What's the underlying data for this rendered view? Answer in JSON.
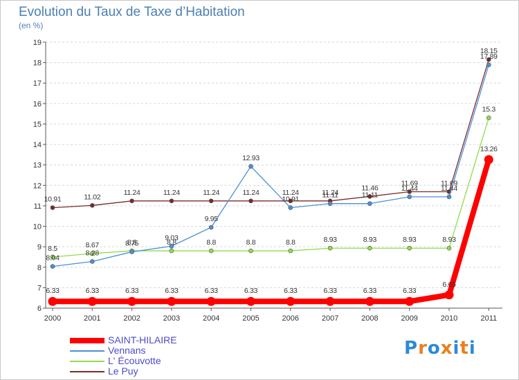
{
  "header": {
    "title": "Evolution du Taux de Taxe d’Habitation",
    "subtitle": "(en %)"
  },
  "logo": {
    "text": "Proxiti",
    "colors": [
      "#2c8ad6",
      "#e8801e",
      "#2c8ad6",
      "#e8801e",
      "#2c8ad6",
      "#e8801e",
      "#2c8ad6"
    ]
  },
  "chart_data": {
    "type": "line",
    "title": "Evolution du Taux de Taxe d’Habitation",
    "subtitle": "(en %)",
    "xlabel": "",
    "ylabel": "",
    "categories": [
      "2000",
      "2001",
      "2002",
      "2003",
      "2004",
      "2005",
      "2006",
      "2007",
      "2008",
      "2009",
      "2010",
      "2011"
    ],
    "ylim": [
      6,
      19
    ],
    "yticks": [
      6,
      7,
      8,
      9,
      10,
      11,
      12,
      13,
      14,
      15,
      16,
      17,
      18,
      19
    ],
    "grid": "horizontal dashed",
    "legend_position": "bottom-left",
    "series": [
      {
        "name": "SAINT-HILAIRE",
        "color": "#ff0000",
        "values": [
          6.33,
          6.33,
          6.33,
          6.33,
          6.33,
          6.33,
          6.33,
          6.33,
          6.33,
          6.33,
          6.65,
          13.26
        ],
        "labels": [
          "6.33",
          "6.33",
          "6.33",
          "6.33",
          "6.33",
          "6.33",
          "6.33",
          "6.33",
          "6.33",
          "6.33",
          "6.65",
          "13.26"
        ]
      },
      {
        "name": "Vennans",
        "color": "#4a90d9",
        "values": [
          8.04,
          8.28,
          8.75,
          9.03,
          9.95,
          12.93,
          10.91,
          11.11,
          11.11,
          11.44,
          11.44,
          17.89
        ],
        "labels": [
          "8.04",
          "8.28",
          "8.75",
          "9.03",
          "9.95",
          "12.93",
          "10.91",
          "11.11",
          "11.11",
          "11.44",
          "11.44",
          "17.89"
        ]
      },
      {
        "name": "L' Écouvotte",
        "color": "#8fdc4a",
        "values": [
          8.5,
          8.67,
          8.8,
          8.8,
          8.8,
          8.8,
          8.8,
          8.93,
          8.93,
          8.93,
          8.93,
          15.3
        ],
        "labels": [
          "8.5",
          "8.67",
          "8.8",
          "8.8",
          "8.8",
          "8.8",
          "8.8",
          "8.93",
          "8.93",
          "8.93",
          "8.93",
          "15.3"
        ]
      },
      {
        "name": "Le Puy",
        "color": "#7a2a2a",
        "values": [
          10.91,
          11.02,
          11.24,
          11.24,
          11.24,
          11.24,
          11.24,
          11.24,
          11.46,
          11.69,
          11.69,
          18.15
        ],
        "labels": [
          "10.91",
          "11.02",
          "11.24",
          "11.24",
          "11.24",
          "11.24",
          "11.24",
          "11.24",
          "11.46",
          "11.69",
          "11.69",
          "18.15"
        ]
      }
    ]
  }
}
